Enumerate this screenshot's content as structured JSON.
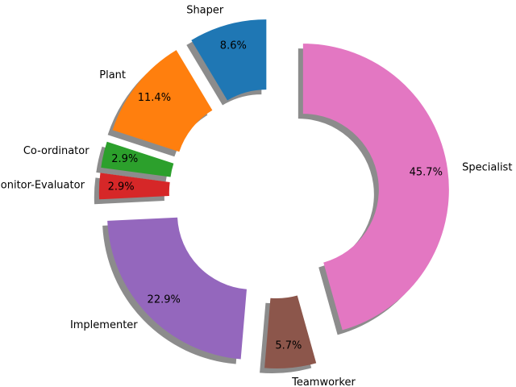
{
  "chart_data": {
    "type": "pie",
    "donut": true,
    "exploded": true,
    "shadow": true,
    "start_angle_deg": 90,
    "direction": "counterclockwise",
    "labels": [
      "Shaper",
      "Plant",
      "Co-ordinator",
      "Monitor-Evaluator",
      "Implementer",
      "Teamworker",
      "Specialist"
    ],
    "values": [
      8.6,
      11.4,
      2.9,
      2.9,
      22.9,
      5.7,
      45.7
    ],
    "value_labels": [
      "8.6%",
      "11.4%",
      "2.9%",
      "2.9%",
      "22.9%",
      "5.7%",
      "45.7%"
    ],
    "colors": [
      "#1f77b4",
      "#ff7f0e",
      "#2ca02c",
      "#d62728",
      "#9467bd",
      "#8c564b",
      "#e377c2"
    ]
  }
}
